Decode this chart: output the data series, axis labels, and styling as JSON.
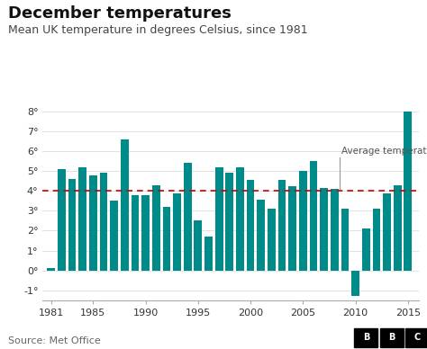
{
  "title": "December temperatures",
  "subtitle": "Mean UK temperature in degrees Celsius, since 1981",
  "source": "Source: Met Office",
  "bar_color": "#008b8b",
  "avg_line_color": "#cc0000",
  "avg_line_value": 4.0,
  "avg_label": "Average temperature",
  "annotation_line_color": "#999999",
  "ylim": [
    -1.5,
    8.7
  ],
  "yticks": [
    -1,
    0,
    1,
    2,
    3,
    4,
    5,
    6,
    7,
    8
  ],
  "years": [
    1981,
    1982,
    1983,
    1984,
    1985,
    1986,
    1987,
    1988,
    1989,
    1990,
    1991,
    1992,
    1993,
    1994,
    1995,
    1996,
    1997,
    1998,
    1999,
    2000,
    2001,
    2002,
    2003,
    2004,
    2005,
    2006,
    2007,
    2008,
    2009,
    2010,
    2011,
    2012,
    2013,
    2014,
    2015
  ],
  "values": [
    0.1,
    5.1,
    4.6,
    5.2,
    4.8,
    4.9,
    3.5,
    6.6,
    3.8,
    3.8,
    4.3,
    3.2,
    3.9,
    5.4,
    2.5,
    1.7,
    5.2,
    4.9,
    5.2,
    4.55,
    3.55,
    3.1,
    4.55,
    4.25,
    5.0,
    5.5,
    4.15,
    4.1,
    3.1,
    -1.3,
    2.1,
    3.1,
    3.9,
    4.3,
    8.0
  ],
  "xticks": [
    1981,
    1985,
    1990,
    1995,
    2000,
    2005,
    2010,
    2015
  ],
  "background_color": "#ffffff",
  "title_fontsize": 13,
  "subtitle_fontsize": 9,
  "source_fontsize": 8
}
